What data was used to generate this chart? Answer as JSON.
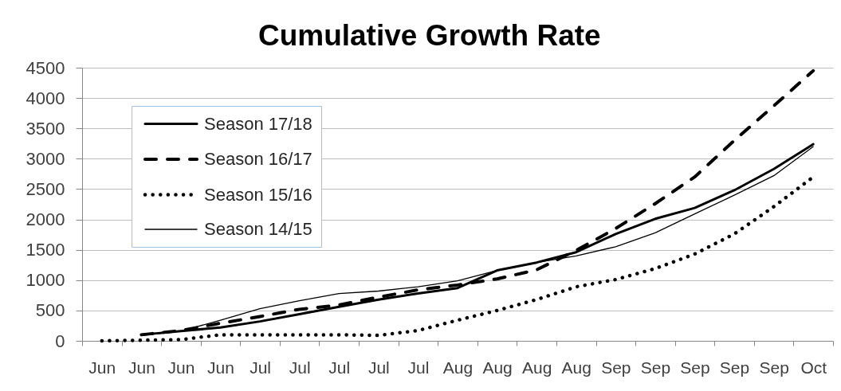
{
  "chart_data": {
    "type": "line",
    "title": "Cumulative Growth Rate",
    "categories": [
      "Jun",
      "Jun",
      "Jun",
      "Jun",
      "Jul",
      "Jul",
      "Jul",
      "Jul",
      "Jul",
      "Aug",
      "Aug",
      "Aug",
      "Aug",
      "Sep",
      "Sep",
      "Sep",
      "Sep",
      "Sep",
      "Oct"
    ],
    "series": [
      {
        "name": "Season 17/18",
        "color": "#000000",
        "line_style": "solid",
        "values": [
          null,
          100,
          160,
          220,
          320,
          440,
          560,
          680,
          780,
          870,
          1160,
          1290,
          1460,
          1760,
          2010,
          2190,
          2480,
          2830,
          3240
        ]
      },
      {
        "name": "Season 16/17",
        "color": "#000000",
        "line_style": "dashed",
        "values": [
          null,
          100,
          170,
          290,
          400,
          520,
          590,
          720,
          840,
          920,
          1020,
          1170,
          1490,
          1850,
          2260,
          2700,
          3300,
          3870,
          4450
        ]
      },
      {
        "name": "Season 15/16",
        "color": "#000000",
        "line_style": "dotted",
        "values": [
          0,
          10,
          20,
          100,
          100,
          100,
          100,
          90,
          170,
          340,
          500,
          680,
          890,
          1010,
          1190,
          1430,
          1760,
          2210,
          2700
        ]
      },
      {
        "name": "Season 14/15",
        "color": "#000000",
        "line_style": "solid",
        "values": [
          null,
          90,
          160,
          340,
          530,
          660,
          780,
          820,
          890,
          990,
          1160,
          1290,
          1400,
          1550,
          1780,
          2090,
          2400,
          2720,
          3200
        ]
      }
    ],
    "ylim": [
      0,
      4500
    ],
    "yticks": [
      0,
      500,
      1000,
      1500,
      2000,
      2500,
      3000,
      3500,
      4000,
      4500
    ],
    "grid": "y",
    "legend": "top left"
  }
}
